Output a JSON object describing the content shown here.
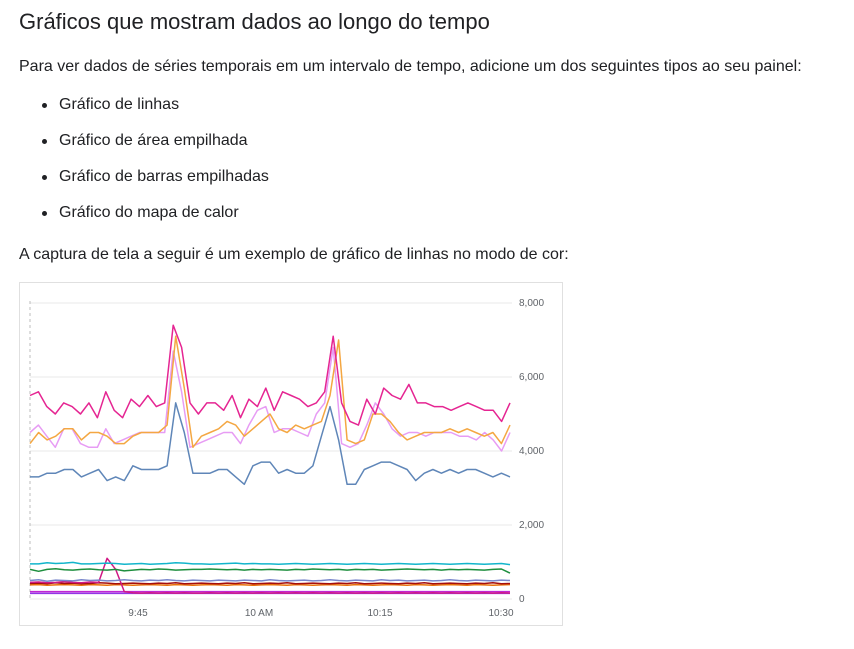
{
  "heading": "Gráficos que mostram dados ao longo do tempo",
  "intro": "Para ver dados de séries temporais em um intervalo de tempo, adicione um dos seguintes tipos ao seu painel:",
  "chart_types": [
    "Gráfico de linhas",
    "Gráfico de área empilhada",
    "Gráfico de barras empilhadas",
    "Gráfico do mapa de calor"
  ],
  "caption": "A captura de tela a seguir é um exemplo de gráfico de linhas no modo de cor:",
  "chart_data": {
    "type": "line",
    "title": "",
    "xlabel": "",
    "ylabel": "",
    "ylim": [
      0,
      8000
    ],
    "x_ticks": [
      "9:45",
      "10 AM",
      "10:15",
      "10:30"
    ],
    "y_ticks": [
      "8,000",
      "6,000",
      "4,000",
      "2,000",
      "0"
    ],
    "y_tick_values": [
      8000,
      6000,
      4000,
      2000,
      0
    ],
    "grid": true,
    "legend": "none",
    "series": [
      {
        "color": "#e52592",
        "values": [
          5500,
          5600,
          5200,
          5000,
          5300,
          5200,
          5000,
          5300,
          4900,
          5600,
          5100,
          4900,
          5400,
          5200,
          5500,
          5200,
          5300,
          7400,
          6800,
          5300,
          5000,
          5300,
          5300,
          5100,
          5500,
          4900,
          5400,
          5200,
          5700,
          5100,
          5600,
          5500,
          5400,
          5200,
          5300,
          5600,
          7100,
          5300,
          4800,
          4700,
          5400,
          5000,
          5700,
          5500,
          5400,
          5800,
          5300,
          5300,
          5200,
          5200,
          5100,
          5200,
          5300,
          5200,
          5100,
          5100,
          4800,
          5300
        ]
      },
      {
        "color": "#f4a742",
        "values": [
          4200,
          4500,
          4300,
          4400,
          4600,
          4600,
          4300,
          4500,
          4500,
          4400,
          4200,
          4200,
          4400,
          4500,
          4500,
          4500,
          4700,
          7100,
          5700,
          4100,
          4400,
          4500,
          4600,
          4800,
          4700,
          4400,
          4600,
          4800,
          5000,
          4600,
          4500,
          4700,
          4600,
          4700,
          4800,
          5500,
          7000,
          4300,
          4200,
          4300,
          5000,
          5000,
          4800,
          4500,
          4300,
          4400,
          4500,
          4500,
          4500,
          4600,
          4500,
          4600,
          4500,
          4400,
          4500,
          4200,
          4700
        ]
      },
      {
        "color": "#e79cf4",
        "values": [
          4500,
          4700,
          4400,
          4100,
          4600,
          4600,
          4200,
          4100,
          4100,
          4600,
          4200,
          4300,
          4400,
          4500,
          4500,
          4500,
          4500,
          6700,
          5600,
          4100,
          4200,
          4300,
          4400,
          4500,
          4500,
          4200,
          4700,
          5100,
          5200,
          4500,
          4600,
          4600,
          4500,
          4400,
          5000,
          5300,
          6800,
          4200,
          4100,
          4200,
          4700,
          5300,
          5000,
          4600,
          4400,
          4500,
          4500,
          4400,
          4500,
          4500,
          4500,
          4400,
          4400,
          4300,
          4500,
          4300,
          4000,
          4500
        ]
      },
      {
        "color": "#5f86b8",
        "values": [
          3300,
          3300,
          3400,
          3400,
          3500,
          3500,
          3300,
          3400,
          3500,
          3200,
          3300,
          3200,
          3600,
          3500,
          3500,
          3500,
          3600,
          5300,
          4500,
          3400,
          3400,
          3400,
          3500,
          3500,
          3300,
          3100,
          3600,
          3700,
          3700,
          3400,
          3500,
          3400,
          3400,
          3600,
          4400,
          5200,
          4300,
          3100,
          3100,
          3500,
          3600,
          3700,
          3700,
          3600,
          3500,
          3200,
          3400,
          3500,
          3400,
          3500,
          3400,
          3500,
          3500,
          3400,
          3300,
          3400,
          3300
        ]
      },
      {
        "color": "#12b5cb",
        "values": [
          950,
          950,
          980,
          960,
          970,
          990,
          950,
          950,
          960,
          970,
          960,
          940,
          950,
          960,
          940,
          950,
          960,
          980,
          970,
          950,
          950,
          940,
          950,
          960,
          970,
          950,
          960,
          950,
          950,
          940,
          950,
          960,
          950,
          940,
          950,
          960,
          950,
          940,
          950,
          960,
          950,
          940,
          950,
          960,
          950,
          940,
          950,
          960,
          950,
          940,
          950,
          960,
          950,
          940,
          950,
          960,
          930
        ]
      },
      {
        "color": "#1e8e3e",
        "values": [
          800,
          750,
          800,
          820,
          790,
          780,
          800,
          810,
          790,
          780,
          800,
          760,
          780,
          800,
          790,
          810,
          800,
          780,
          790,
          800,
          800,
          810,
          800,
          790,
          800,
          780,
          800,
          790,
          800,
          790,
          780,
          800,
          790,
          810,
          800,
          790,
          800,
          780,
          800,
          790,
          800,
          780,
          790,
          800,
          810,
          800,
          790,
          800,
          780,
          800,
          790,
          800,
          790,
          780,
          800,
          810,
          700
        ]
      },
      {
        "color": "#7986cb",
        "values": [
          500,
          520,
          480,
          510,
          500,
          490,
          520,
          500,
          510,
          490,
          500,
          520,
          500,
          490,
          510,
          500,
          520,
          500,
          490,
          510,
          500,
          490,
          510,
          500,
          490,
          510,
          500,
          490,
          520,
          500,
          490,
          500,
          510,
          490,
          500,
          520,
          500,
          490,
          510,
          500,
          490,
          520,
          500,
          510,
          490,
          500,
          510,
          490,
          500,
          520,
          500,
          490,
          510,
          500,
          490,
          510,
          500
        ]
      },
      {
        "color": "#d01884",
        "values": [
          450,
          460,
          440,
          450,
          470,
          450,
          440,
          460,
          450,
          1100,
          800,
          200,
          170,
          160,
          170,
          160,
          170,
          160,
          170,
          160,
          160,
          170,
          160,
          170,
          160,
          170,
          160,
          170,
          160,
          170,
          160,
          170,
          160,
          170,
          160,
          170,
          160,
          170,
          160,
          170,
          160,
          170,
          160,
          170,
          160,
          170,
          160,
          170,
          160,
          170,
          160,
          170,
          160,
          170,
          160,
          170,
          160
        ]
      },
      {
        "color": "#a50e0e",
        "values": [
          420,
          430,
          410,
          440,
          420,
          430,
          410,
          420,
          440,
          430,
          410,
          420,
          430,
          420,
          410,
          430,
          420,
          440,
          410,
          420,
          430,
          420,
          410,
          430,
          420,
          440,
          410,
          420,
          430,
          420,
          440,
          410,
          420,
          430,
          420,
          410,
          430,
          420,
          440,
          410,
          420,
          430,
          420,
          410,
          430,
          420,
          440,
          410,
          420,
          430,
          420,
          410,
          430,
          420,
          440,
          410,
          420
        ]
      },
      {
        "color": "#e8710a",
        "values": [
          380,
          390,
          370,
          380,
          390,
          380,
          370,
          390,
          380,
          370,
          390,
          380,
          370,
          380,
          390,
          380,
          370,
          390,
          380,
          370,
          380,
          390,
          380,
          370,
          390,
          380,
          370,
          380,
          390,
          380,
          370,
          390,
          380,
          370,
          380,
          390,
          380,
          370,
          390,
          380,
          370,
          380,
          390,
          380,
          370,
          390,
          380,
          370,
          380,
          390,
          380,
          370,
          390,
          380,
          370,
          380,
          390
        ]
      },
      {
        "color": "#c026d3",
        "values": [
          200,
          200,
          200,
          200,
          200,
          200,
          200,
          200,
          200,
          200,
          200,
          200,
          200,
          200,
          200,
          200,
          200,
          200,
          200,
          200,
          200,
          200,
          200,
          200,
          200,
          200,
          200,
          200,
          200,
          200,
          200,
          200,
          200,
          200,
          200,
          200,
          200,
          200,
          200,
          200,
          200,
          200,
          200,
          200,
          200,
          200,
          200,
          200,
          200,
          200,
          200,
          200,
          200,
          200,
          200,
          200,
          200
        ]
      },
      {
        "color": "#9334e6",
        "values": [
          150,
          150,
          150,
          150,
          150,
          150,
          150,
          150,
          150,
          150,
          150,
          150,
          150,
          150,
          150,
          150,
          150,
          150,
          150,
          150,
          150,
          150,
          150,
          150,
          150,
          150,
          150,
          150,
          150,
          150,
          150,
          150,
          150,
          150,
          150,
          150,
          150,
          150,
          150,
          150,
          150,
          150,
          150,
          150,
          150,
          150,
          150,
          150,
          150,
          150,
          150,
          150,
          150,
          150,
          150,
          150,
          150
        ]
      }
    ]
  }
}
